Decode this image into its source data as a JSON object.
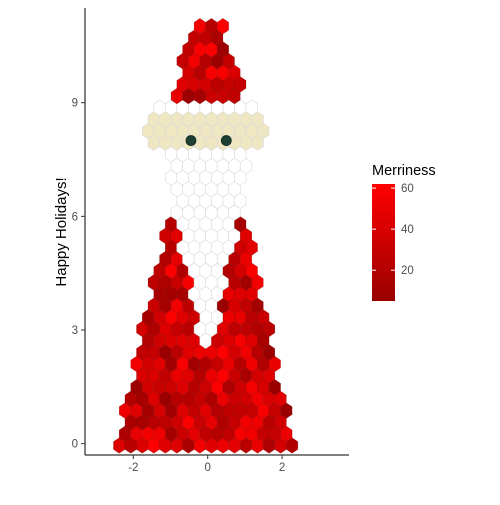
{
  "chart_data": {
    "type": "hexbin",
    "title": "",
    "xlabel": "",
    "ylabel": "Happy Holidays!",
    "xlim": [
      -3.3,
      3.8
    ],
    "ylim": [
      -0.3,
      11.5
    ],
    "x_ticks": [
      -2,
      0,
      2
    ],
    "y_ticks": [
      0,
      3,
      6,
      9
    ],
    "x_tick_labels": [
      "-2",
      "0",
      "2"
    ],
    "y_tick_labels": [
      "0",
      "3",
      "6",
      "9"
    ],
    "grid": false,
    "legend": {
      "title": "Merriness",
      "placement": "right",
      "range": [
        5,
        62
      ],
      "ticks": [
        20,
        40,
        60
      ],
      "tick_labels": [
        "20",
        "40",
        "60"
      ],
      "colors": [
        "#990000",
        "#FF0000"
      ]
    },
    "regions": [
      {
        "name": "hat",
        "shape": "trapezoid",
        "y": [
          9.0,
          11.2
        ],
        "x_at_bottom": [
          -1.05,
          1.05
        ],
        "x_at_top": [
          -0.4,
          0.4
        ],
        "color": "fill"
      },
      {
        "name": "hat-brim",
        "shape": "band",
        "y": [
          8.6,
          9.0
        ],
        "x": [
          -1.3,
          1.3
        ],
        "color": "#ffffff"
      },
      {
        "name": "face",
        "shape": "band",
        "y": [
          7.9,
          8.6
        ],
        "x": [
          -1.65,
          1.6
        ],
        "color": "#efe6c2"
      },
      {
        "name": "beard",
        "shape": "trapezoid",
        "y": [
          2.5,
          7.9
        ],
        "x_at_bottom": [
          -0.15,
          0.15
        ],
        "x_at_top": [
          -1.25,
          1.2
        ],
        "color": "#ffffff"
      },
      {
        "name": "coat",
        "shape": "trapezoid",
        "y": [
          -0.15,
          6.5
        ],
        "x_at_bottom": [
          -2.55,
          2.35
        ],
        "x_at_top": [
          -0.9,
          0.9
        ],
        "color": "fill"
      }
    ],
    "eyes": [
      {
        "x": -0.45,
        "y": 8.0
      },
      {
        "x": 0.5,
        "y": 8.0
      }
    ],
    "eye_color": "#1c4132"
  }
}
